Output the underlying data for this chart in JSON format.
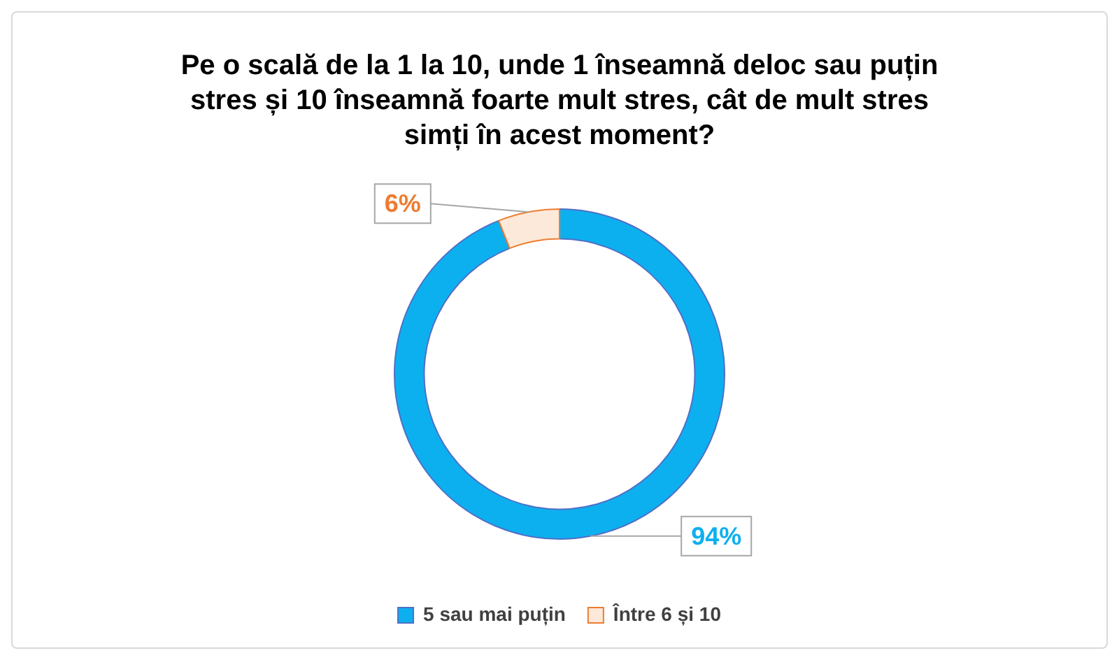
{
  "chart_data": {
    "type": "donut",
    "title": "Pe o scală de la 1 la 10, unde 1 înseamnă deloc sau puțin stres și 10 înseamnă foarte mult stres, cât de mult stres simți în acest moment?",
    "categories": [
      "5 sau mai puțin",
      "Între 6 și 10"
    ],
    "values": [
      94,
      6
    ],
    "colors": [
      "#0db0ef",
      "#fde9d9"
    ],
    "value_labels": [
      "94%",
      "6%"
    ],
    "legend": "bottom"
  }
}
